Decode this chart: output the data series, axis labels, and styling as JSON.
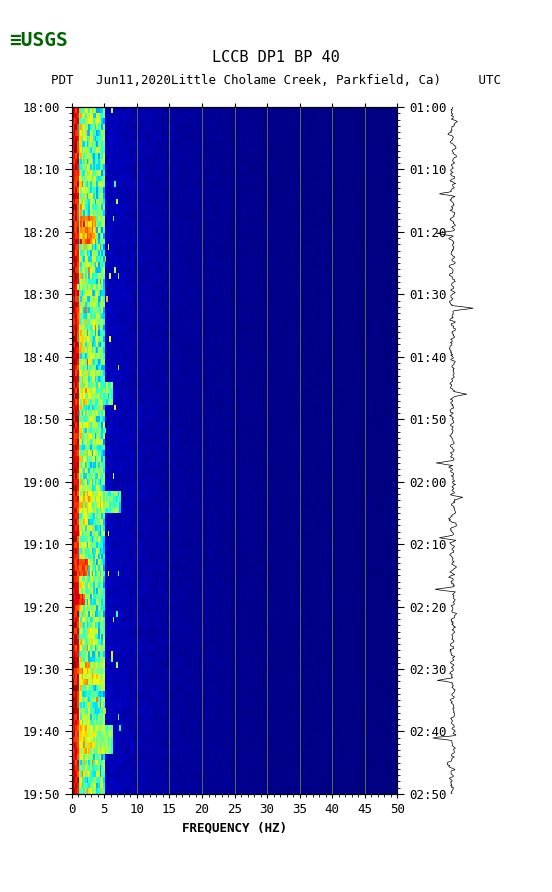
{
  "title_line1": "LCCB DP1 BP 40",
  "title_line2": "PDT   Jun11,2020Little Cholame Creek, Parkfield, Ca)     UTC",
  "xlabel": "FREQUENCY (HZ)",
  "ylabel_left_times": [
    "18:00",
    "18:10",
    "18:20",
    "18:30",
    "18:40",
    "18:50",
    "19:00",
    "19:10",
    "19:20",
    "19:30",
    "19:40",
    "19:50"
  ],
  "ylabel_right_times": [
    "01:00",
    "01:10",
    "01:20",
    "01:30",
    "01:40",
    "01:50",
    "02:00",
    "02:10",
    "02:20",
    "02:30",
    "02:40",
    "02:50"
  ],
  "freq_ticks": [
    0,
    5,
    10,
    15,
    20,
    25,
    30,
    35,
    40,
    45,
    50
  ],
  "freq_min": 0,
  "freq_max": 50,
  "time_steps": 120,
  "freq_steps": 200,
  "background_color": "#ffffff",
  "spectrogram_bg": "#00008B",
  "grid_color": "#808040",
  "grid_linewidth": 0.7,
  "grid_positions": [
    10,
    15,
    20,
    25,
    30,
    35,
    40,
    45
  ],
  "logo_color": "#006400",
  "seismogram_color": "#000000",
  "n_time": 120,
  "n_freq": 200
}
